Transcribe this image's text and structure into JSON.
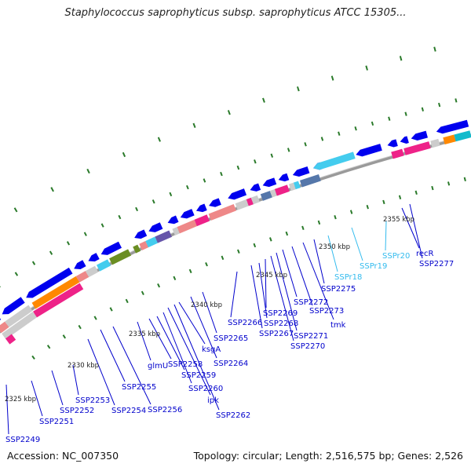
{
  "title": "Staphylococcus saprophyticus subsp. saprophyticus ATCC 15305...",
  "footer": {
    "accession": "Accession: NC_007350",
    "summary": "Topology: circular; Length: 2,516,575 bp; Genes: 2,526"
  },
  "colors": {
    "forward_gene": "#0000ee",
    "gene_label": "#0000cc",
    "rna_label": "#33bbee",
    "backbone": "#888888",
    "tick": "#2a7a2a",
    "pink": "#ee2288",
    "salmon": "#ee8888",
    "grey": "#cccccc",
    "cyan": "#44ccee",
    "olive": "#6b8e23",
    "orange": "#ff8800",
    "slate": "#5577aa",
    "purple": "#6655aa",
    "teal": "#11bbcc"
  },
  "scale_labels": [
    "2325 kbp",
    "2330 kbp",
    "2335 kbp",
    "2340 kbp",
    "2345 kbp",
    "2350 kbp",
    "2355 kbp"
  ],
  "gene_labels": [
    {
      "text": "SSP2249",
      "type": "gene"
    },
    {
      "text": "SSP2251",
      "type": "gene"
    },
    {
      "text": "SSP2252",
      "type": "gene"
    },
    {
      "text": "SSP2253",
      "type": "gene"
    },
    {
      "text": "SSP2254",
      "type": "gene"
    },
    {
      "text": "SSP2255",
      "type": "gene"
    },
    {
      "text": "SSP2256",
      "type": "gene"
    },
    {
      "text": "glmU",
      "type": "gene"
    },
    {
      "text": "SSP2258",
      "type": "gene"
    },
    {
      "text": "SSP2259",
      "type": "gene"
    },
    {
      "text": "SSP2260",
      "type": "gene"
    },
    {
      "text": "ipk",
      "type": "gene"
    },
    {
      "text": "SSP2262",
      "type": "gene"
    },
    {
      "text": "ksgA",
      "type": "gene"
    },
    {
      "text": "SSP2264",
      "type": "gene"
    },
    {
      "text": "SSP2265",
      "type": "gene"
    },
    {
      "text": "SSP2266",
      "type": "gene"
    },
    {
      "text": "SSP2267",
      "type": "gene"
    },
    {
      "text": "SSP2268",
      "type": "gene"
    },
    {
      "text": "SSP2269",
      "type": "gene"
    },
    {
      "text": "SSP2270",
      "type": "gene"
    },
    {
      "text": "SSP2271",
      "type": "gene"
    },
    {
      "text": "SSP2272",
      "type": "gene"
    },
    {
      "text": "SSP2273",
      "type": "gene"
    },
    {
      "text": "tmk",
      "type": "gene"
    },
    {
      "text": "SSP2275",
      "type": "gene"
    },
    {
      "text": "SSPr18",
      "type": "rna"
    },
    {
      "text": "SSPr19",
      "type": "rna"
    },
    {
      "text": "SSPr20",
      "type": "rna"
    },
    {
      "text": "recR",
      "type": "gene"
    },
    {
      "text": "SSP2277",
      "type": "gene"
    }
  ]
}
